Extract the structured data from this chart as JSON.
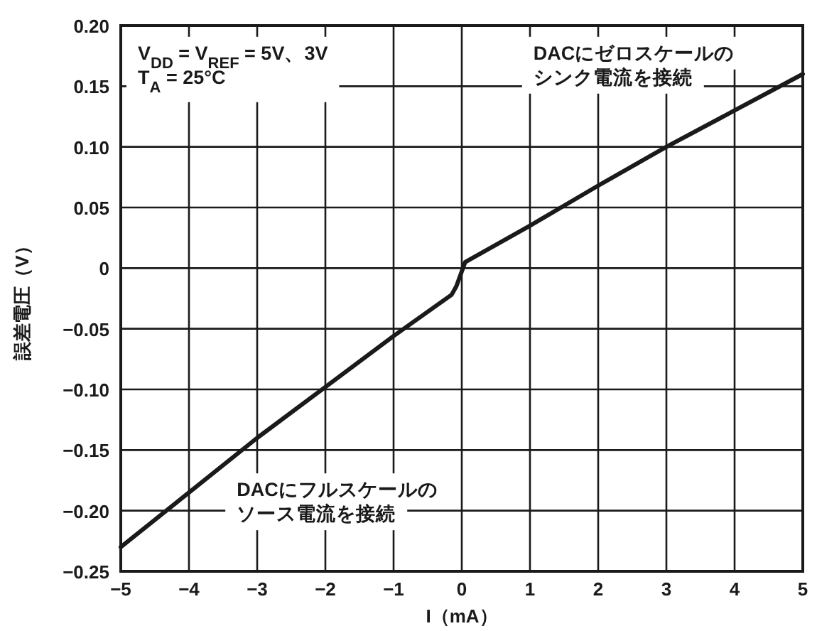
{
  "chart_data": {
    "type": "line",
    "xlabel": "I（mA）",
    "ylabel": "誤差電圧（V）",
    "x": [
      -5,
      -4,
      -3,
      -2,
      -1,
      -0.15,
      -0.08,
      0.05,
      1,
      2,
      3,
      4,
      5
    ],
    "series": [
      {
        "color": "#1a1a1a",
        "values": [
          -0.23,
          -0.185,
          -0.14,
          -0.098,
          -0.056,
          -0.022,
          -0.015,
          0.005,
          0.035,
          0.068,
          0.1,
          0.13,
          0.16
        ]
      }
    ],
    "xlim": [
      -5,
      5
    ],
    "ylim": [
      -0.25,
      0.2
    ],
    "xticks": [
      {
        "value": -5,
        "label": "−5"
      },
      {
        "value": -4,
        "label": "−4"
      },
      {
        "value": -3,
        "label": "−3"
      },
      {
        "value": -2,
        "label": "−2"
      },
      {
        "value": -1,
        "label": "−1"
      },
      0,
      1,
      2,
      3,
      4,
      5
    ],
    "yticks": [
      {
        "value": -0.25,
        "label": "−0.25"
      },
      {
        "value": -0.2,
        "label": "−0.20"
      },
      {
        "value": -0.15,
        "label": "−0.15"
      },
      {
        "value": -0.1,
        "label": "−0.10"
      },
      {
        "value": -0.05,
        "label": "−0.05"
      },
      0,
      {
        "value": 0.05,
        "label": "0.05"
      },
      {
        "value": 0.1,
        "label": "0.10"
      },
      {
        "value": 0.15,
        "label": "0.15"
      },
      {
        "value": 0.2,
        "label": "0.20"
      }
    ],
    "grid": true,
    "line_style": "solid",
    "marker": "none",
    "annotations": [
      "V$_{DD}$ = V$_{REF}$ = 5V、3V\nT$_{A}$ = 25°C",
      "DACにゼロスケールの",
      "シンク電流を接続",
      "DACにフルスケールの",
      "ソース電流を接続"
    ]
  }
}
